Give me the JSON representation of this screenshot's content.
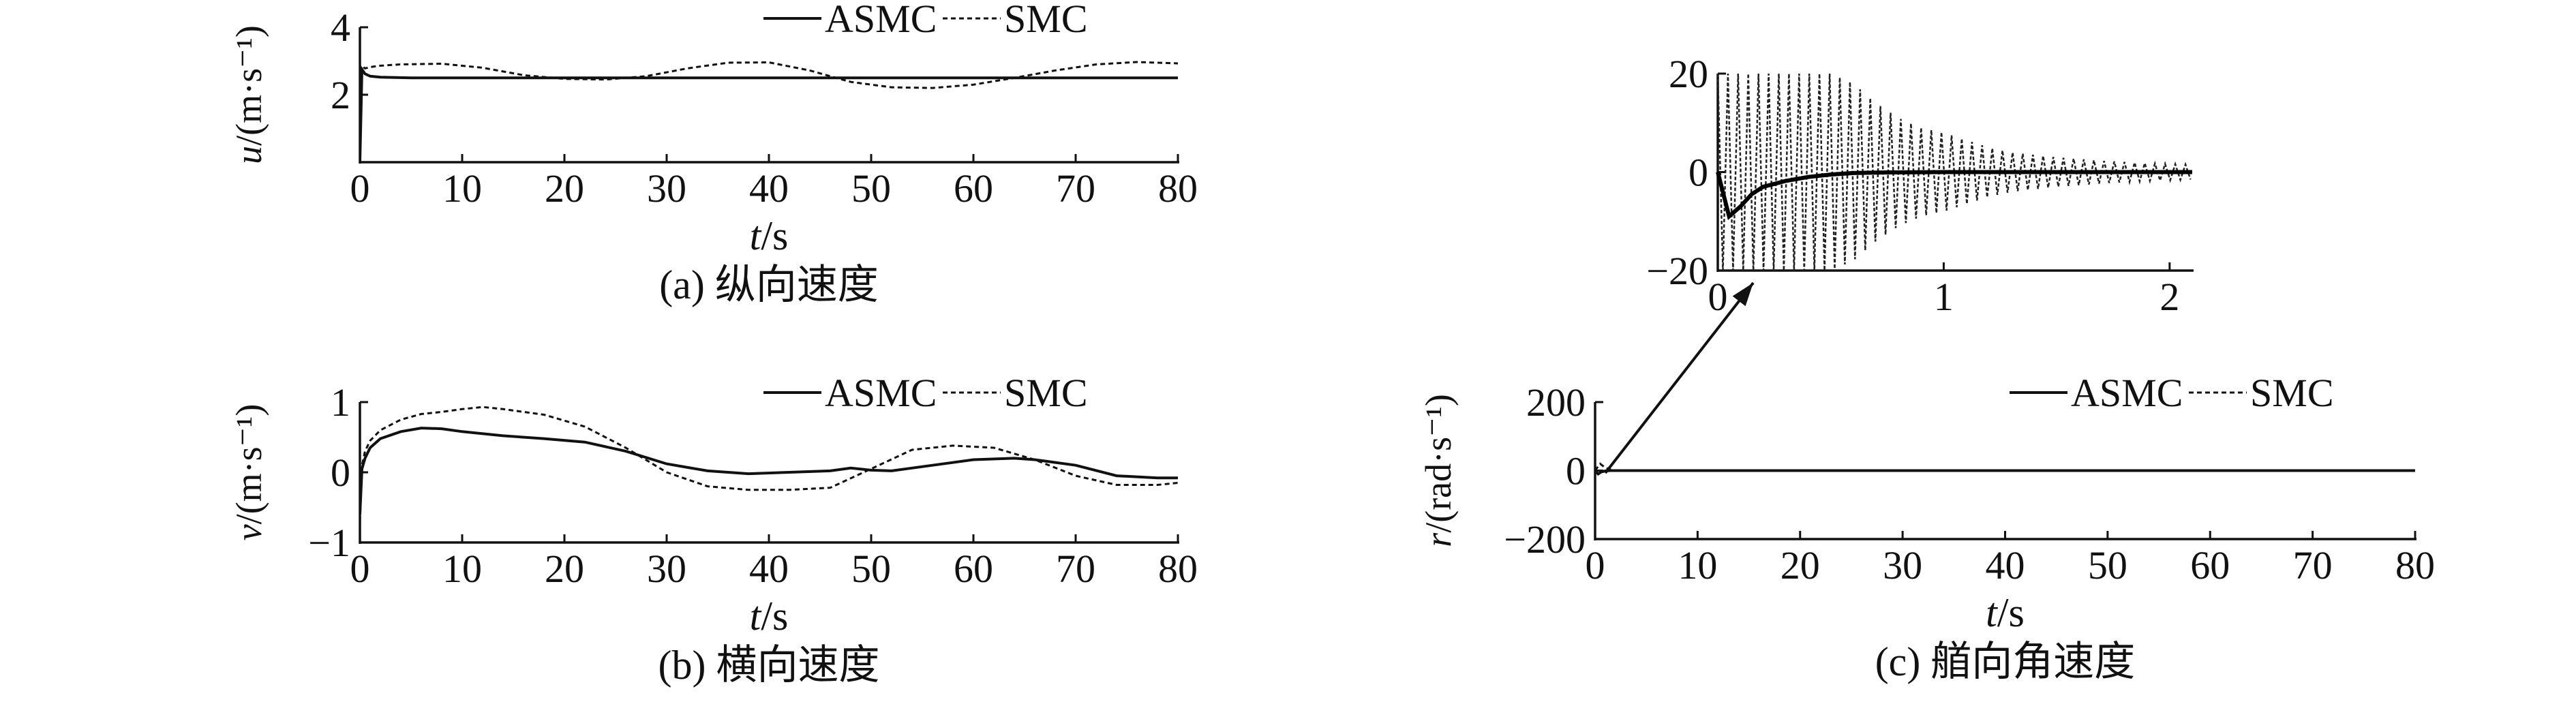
{
  "chart_data": [
    {
      "type": "line",
      "caption": "(a) 纵向速度",
      "xlabel_var": "t",
      "xlabel_unit": "/s",
      "ylabel_var": "u",
      "ylabel_unit": "/(m·s⁻¹)",
      "xlim": [
        0,
        80
      ],
      "ylim": [
        0,
        4
      ],
      "xticks": [
        "0",
        "10",
        "20",
        "30",
        "40",
        "50",
        "60",
        "70",
        "80"
      ],
      "yticks": [
        "2",
        "4"
      ],
      "legend": [
        "ASMC",
        "SMC"
      ],
      "legend_position": "top-right",
      "grid": false,
      "series": [
        {
          "name": "ASMC",
          "style": "solid",
          "x": [
            0,
            0.2,
            0.5,
            1,
            2,
            5,
            10,
            20,
            30,
            40,
            50,
            60,
            70,
            80
          ],
          "y": [
            0,
            2.75,
            2.62,
            2.55,
            2.52,
            2.5,
            2.5,
            2.5,
            2.5,
            2.5,
            2.5,
            2.5,
            2.5,
            2.5
          ]
        },
        {
          "name": "SMC",
          "style": "dashed",
          "x": [
            0,
            0.2,
            0.5,
            1,
            2,
            4,
            8,
            12,
            16,
            20,
            24,
            28,
            32,
            36,
            40,
            44,
            48,
            52,
            56,
            60,
            64,
            68,
            72,
            76,
            80
          ],
          "y": [
            0,
            2.85,
            2.78,
            2.82,
            2.86,
            2.9,
            2.92,
            2.8,
            2.58,
            2.47,
            2.45,
            2.55,
            2.78,
            2.95,
            2.96,
            2.72,
            2.38,
            2.22,
            2.2,
            2.3,
            2.5,
            2.72,
            2.9,
            2.97,
            2.93
          ]
        }
      ]
    },
    {
      "type": "line",
      "caption": "(b) 横向速度",
      "xlabel_var": "t",
      "xlabel_unit": "/s",
      "ylabel_var": "v",
      "ylabel_unit": "/(m·s⁻¹)",
      "xlim": [
        0,
        80
      ],
      "ylim": [
        -1,
        1
      ],
      "xticks": [
        "0",
        "10",
        "20",
        "30",
        "40",
        "50",
        "60",
        "70",
        "80"
      ],
      "yticks": [
        "−1",
        "0",
        "1"
      ],
      "legend": [
        "ASMC",
        "SMC"
      ],
      "legend_position": "top-right",
      "grid": false,
      "series": [
        {
          "name": "ASMC",
          "style": "solid",
          "x": [
            0,
            0.2,
            0.5,
            1,
            2,
            4,
            6,
            8,
            10,
            14,
            18,
            22,
            26,
            30,
            34,
            38,
            42,
            46,
            48,
            50,
            52,
            56,
            60,
            64,
            66,
            70,
            74,
            78,
            80
          ],
          "y": [
            -0.6,
            0.05,
            0.2,
            0.35,
            0.48,
            0.58,
            0.63,
            0.62,
            0.58,
            0.52,
            0.48,
            0.43,
            0.3,
            0.12,
            0.02,
            -0.02,
            0,
            0.02,
            0.06,
            0.03,
            0.02,
            0.1,
            0.18,
            0.2,
            0.18,
            0.1,
            -0.05,
            -0.08,
            -0.08
          ]
        },
        {
          "name": "SMC",
          "style": "dashed",
          "x": [
            0,
            0.2,
            0.5,
            1,
            2,
            4,
            6,
            8,
            10,
            12,
            14,
            18,
            22,
            26,
            30,
            34,
            38,
            42,
            46,
            50,
            54,
            58,
            62,
            66,
            70,
            74,
            78,
            80
          ],
          "y": [
            -0.7,
            0.1,
            0.3,
            0.45,
            0.6,
            0.75,
            0.83,
            0.86,
            0.9,
            0.93,
            0.9,
            0.82,
            0.65,
            0.35,
            0,
            -0.2,
            -0.25,
            -0.25,
            -0.22,
            0.05,
            0.32,
            0.38,
            0.35,
            0.18,
            -0.05,
            -0.18,
            -0.18,
            -0.15
          ]
        }
      ]
    },
    {
      "type": "line",
      "caption": "(c) 艏向角速度",
      "xlabel_var": "t",
      "xlabel_unit": "/s",
      "ylabel_var": "r",
      "ylabel_unit": "/(rad·s⁻¹)",
      "xlim": [
        0,
        80
      ],
      "ylim": [
        -200,
        200
      ],
      "xticks": [
        "0",
        "10",
        "20",
        "30",
        "40",
        "50",
        "60",
        "70",
        "80"
      ],
      "yticks": [
        "−200",
        "0",
        "200"
      ],
      "legend": [
        "ASMC",
        "SMC"
      ],
      "legend_position": "top-right",
      "grid": false,
      "series": [
        {
          "name": "ASMC",
          "style": "solid",
          "x": [
            0,
            0.3,
            0.6,
            1,
            1.5,
            2.1,
            5,
            80
          ],
          "y": [
            0,
            -10,
            -4,
            -1,
            0,
            0,
            0,
            0
          ]
        },
        {
          "name": "SMC",
          "style": "dashed",
          "note": "oscillation",
          "x": [
            0,
            0.5,
            1,
            1.5,
            2.1,
            80
          ],
          "y": [
            0,
            20,
            8,
            3,
            0,
            0
          ]
        }
      ]
    },
    {
      "type": "line",
      "caption": "",
      "inset_of": "(c)",
      "xlim": [
        0,
        2.1
      ],
      "ylim": [
        -20,
        20
      ],
      "xticks": [
        "0",
        "1",
        "2"
      ],
      "yticks": [
        "−20",
        "0",
        "20"
      ],
      "grid": false,
      "series": [
        {
          "name": "ASMC",
          "style": "solid",
          "x": [
            0.0,
            0.05,
            0.1,
            0.15,
            0.2,
            0.3,
            0.4,
            0.5,
            0.6,
            0.7,
            0.8,
            1.0,
            1.2,
            1.5,
            1.8,
            2.1
          ],
          "y": [
            0,
            -9,
            -7,
            -4.5,
            -3,
            -1.8,
            -1.0,
            -0.5,
            -0.2,
            -0.1,
            -0.05,
            0,
            0,
            0,
            0,
            0
          ]
        },
        {
          "name": "SMC",
          "style": "dashed",
          "envelope_t": [
            0.0,
            0.35,
            0.5,
            0.6,
            0.7,
            0.8,
            0.9,
            1.0,
            1.1,
            1.2,
            1.3,
            1.5,
            1.7,
            1.9,
            2.1
          ],
          "envelope_a": [
            20,
            20,
            20,
            18,
            14,
            11,
            9,
            8,
            6.5,
            5,
            4,
            3,
            2.3,
            1.8,
            1.5
          ],
          "oscillation_period": 0.045
        }
      ]
    }
  ]
}
